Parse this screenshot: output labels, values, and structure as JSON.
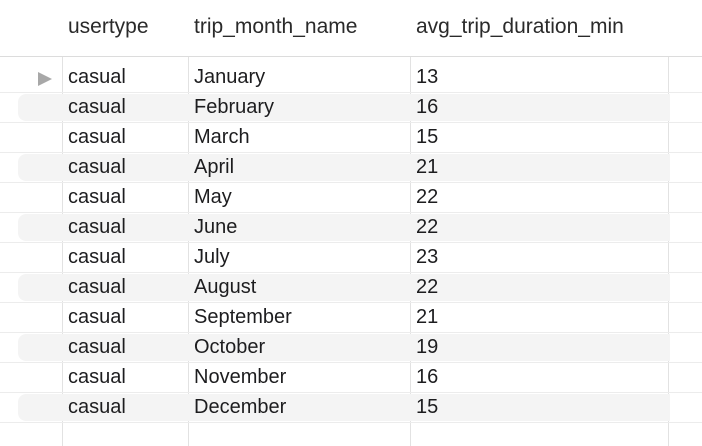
{
  "columns": [
    "usertype",
    "trip_month_name",
    "avg_trip_duration_min"
  ],
  "rows": [
    [
      "casual",
      "January",
      "13"
    ],
    [
      "casual",
      "February",
      "16"
    ],
    [
      "casual",
      "March",
      "15"
    ],
    [
      "casual",
      "April",
      "21"
    ],
    [
      "casual",
      "May",
      "22"
    ],
    [
      "casual",
      "June",
      "22"
    ],
    [
      "casual",
      "July",
      "23"
    ],
    [
      "casual",
      "August",
      "22"
    ],
    [
      "casual",
      "September",
      "21"
    ],
    [
      "casual",
      "October",
      "19"
    ],
    [
      "casual",
      "November",
      "16"
    ],
    [
      "casual",
      "December",
      "15"
    ]
  ],
  "current_row_indicator": "triangle-right-icon",
  "colors": {
    "stripe": "#f4f4f4",
    "divider": "#e2e2e2",
    "marker": "#a8a8a8"
  }
}
